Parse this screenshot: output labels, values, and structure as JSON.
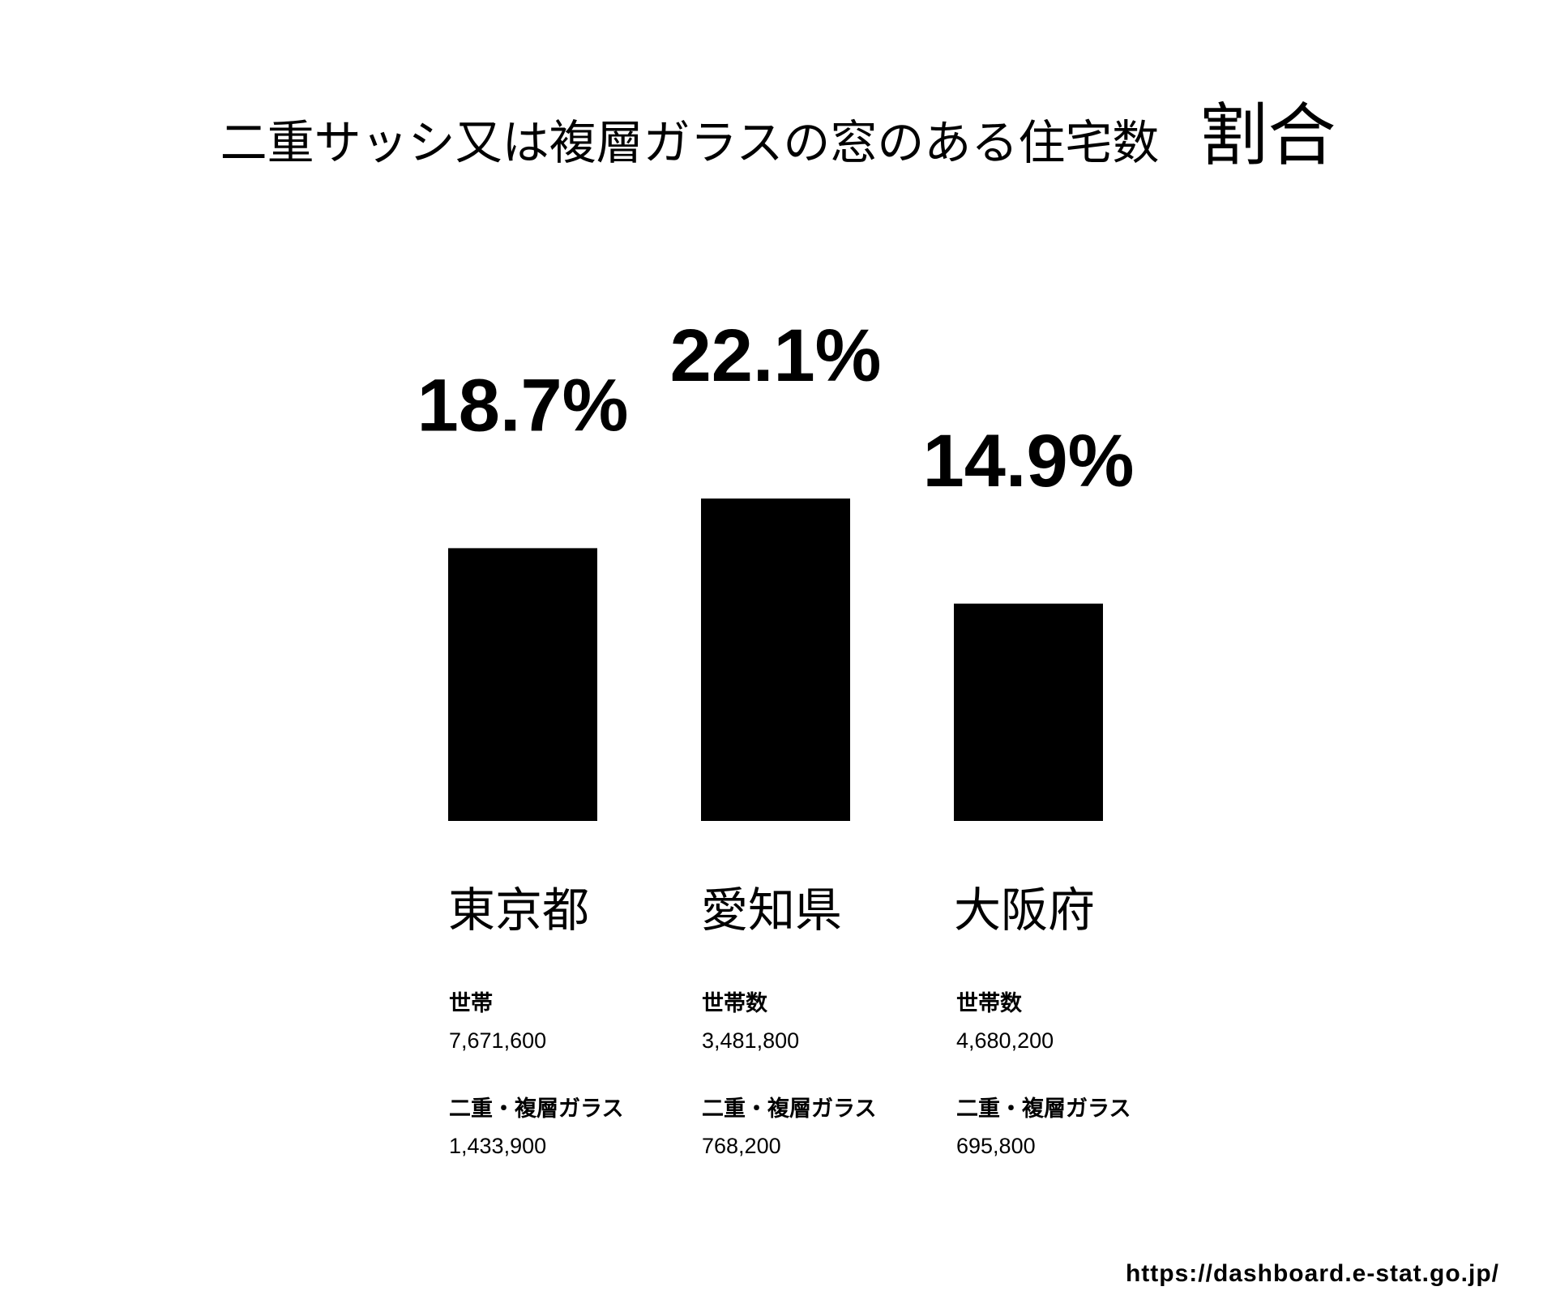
{
  "title": "二重サッシ又は複層ガラスの窓のある住宅数",
  "subtitle": "割合",
  "source": "https://dashboard.e-stat.go.jp/",
  "chart_data": {
    "type": "bar",
    "categories": [
      "東京都",
      "愛知県",
      "大阪府"
    ],
    "values": [
      18.7,
      22.1,
      14.9
    ],
    "value_labels": [
      "18.7%",
      "22.1%",
      "14.9%"
    ],
    "unit": "%",
    "bar_color": "#000000",
    "grid": false,
    "title": "二重サッシ又は複層ガラスの窓のある住宅数",
    "subtitle": "割合"
  },
  "details": [
    {
      "households_label": "世帯",
      "households": "7,671,600",
      "glass_label": "二重・複層ガラス",
      "glass": "1,433,900"
    },
    {
      "households_label": "世帯数",
      "households": "3,481,800",
      "glass_label": "二重・複層ガラス",
      "glass": "768,200"
    },
    {
      "households_label": "世帯数",
      "households": "4,680,200",
      "glass_label": "二重・複層ガラス",
      "glass": "695,800"
    }
  ]
}
